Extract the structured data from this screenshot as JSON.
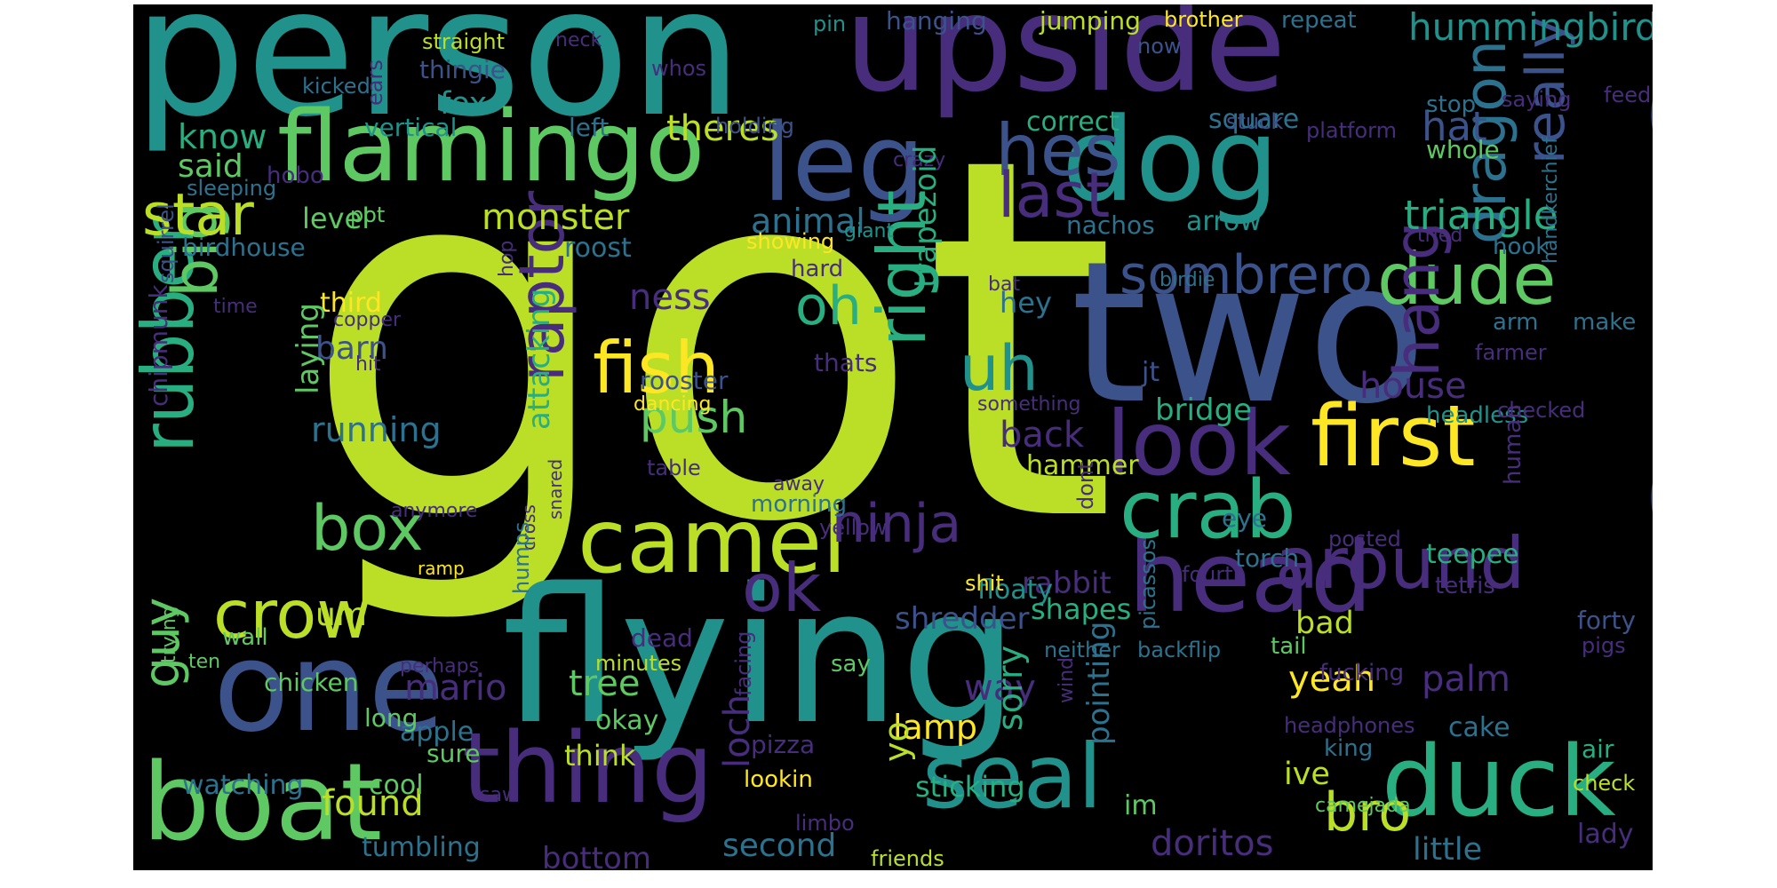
{
  "palette": [
    "#440154",
    "#472d7b",
    "#3b528b",
    "#2c728e",
    "#21918c",
    "#28ae80",
    "#5ec962",
    "#addc30",
    "#fde725",
    "#bbdf27"
  ],
  "words": [
    {
      "text": "got",
      "color": "#bbdf27"
    },
    {
      "text": "person",
      "color": "#21918c"
    },
    {
      "text": "upside",
      "color": "#472d7b"
    },
    {
      "text": "bird",
      "color": "#3b528b"
    },
    {
      "text": "two",
      "color": "#3b528b"
    },
    {
      "text": "flying",
      "color": "#21918c"
    },
    {
      "text": "flamingo",
      "color": "#5ec962"
    },
    {
      "text": "dog",
      "color": "#21918c"
    },
    {
      "text": "leg",
      "color": "#3b528b"
    },
    {
      "text": "hes",
      "color": "#3b528b"
    },
    {
      "text": "one",
      "color": "#3b528b"
    },
    {
      "text": "boat",
      "color": "#5ec962"
    },
    {
      "text": "head",
      "color": "#472d7b"
    },
    {
      "text": "camel",
      "color": "#bbdf27"
    },
    {
      "text": "look",
      "color": "#472d7b"
    },
    {
      "text": "first",
      "color": "#fde725"
    },
    {
      "text": "seal",
      "color": "#21918c"
    },
    {
      "text": "duck",
      "color": "#28ae80"
    },
    {
      "text": "thing",
      "color": "#472d7b"
    },
    {
      "text": "crab",
      "color": "#28ae80"
    },
    {
      "text": "around",
      "color": "#472d7b"
    },
    {
      "text": "dude",
      "color": "#5ec962"
    },
    {
      "text": "right",
      "color": "#28ae80"
    },
    {
      "text": "crow",
      "color": "#bbdf27"
    },
    {
      "text": "fish",
      "color": "#fde725"
    },
    {
      "text": "box",
      "color": "#5ec962"
    },
    {
      "text": "ninja",
      "color": "#472d7b"
    },
    {
      "text": "rubber",
      "color": "#28ae80"
    },
    {
      "text": "big",
      "color": "#5ec962"
    },
    {
      "text": "hang",
      "color": "#472d7b"
    },
    {
      "text": "dragon",
      "color": "#2c728e"
    },
    {
      "text": "raptor",
      "color": "#472d7b"
    },
    {
      "text": "sombrero",
      "color": "#3b528b"
    },
    {
      "text": "uh",
      "color": "#21918c"
    },
    {
      "text": "oh",
      "color": "#28ae80"
    },
    {
      "text": "ok",
      "color": "#472d7b"
    },
    {
      "text": "last",
      "color": "#472d7b"
    },
    {
      "text": "star",
      "color": "#bbdf27"
    },
    {
      "text": "really",
      "color": "#3b528b"
    },
    {
      "text": "triangle",
      "color": "#28ae80"
    },
    {
      "text": "guy",
      "color": "#5ec962"
    },
    {
      "text": "bro",
      "color": "#bbdf27"
    },
    {
      "text": "push",
      "color": "#5ec962"
    },
    {
      "text": "monster",
      "color": "#bbdf27"
    },
    {
      "text": "theres",
      "color": "#bbdf27"
    },
    {
      "text": "hummingbird",
      "color": "#21918c"
    },
    {
      "text": "ness",
      "color": "#472d7b"
    },
    {
      "text": "house",
      "color": "#472d7b"
    },
    {
      "text": "hat",
      "color": "#3b528b"
    },
    {
      "text": "running",
      "color": "#2c728e"
    },
    {
      "text": "found",
      "color": "#bbdf27"
    },
    {
      "text": "yeah",
      "color": "#fde725"
    },
    {
      "text": "palm",
      "color": "#472d7b"
    },
    {
      "text": "doritos",
      "color": "#472d7b"
    },
    {
      "text": "second",
      "color": "#2c728e"
    },
    {
      "text": "bottom",
      "color": "#472d7b"
    },
    {
      "text": "little",
      "color": "#2c728e"
    },
    {
      "text": "mario",
      "color": "#472d7b"
    },
    {
      "text": "tree",
      "color": "#5ec962"
    },
    {
      "text": "lamp",
      "color": "#fde725"
    },
    {
      "text": "okay",
      "color": "#5ec962"
    },
    {
      "text": "um",
      "color": "#bbdf27"
    },
    {
      "text": "way",
      "color": "#472d7b"
    },
    {
      "text": "bad",
      "color": "#bbdf27"
    },
    {
      "text": "ive",
      "color": "#bbdf27"
    },
    {
      "text": "barn",
      "color": "#3b528b"
    },
    {
      "text": "third",
      "color": "#fde725"
    },
    {
      "text": "level",
      "color": "#5ec962"
    },
    {
      "text": "animal",
      "color": "#2c728e"
    },
    {
      "text": "know",
      "color": "#28ae80"
    },
    {
      "text": "said",
      "color": "#5ec962"
    },
    {
      "text": "fox",
      "color": "#21918c"
    },
    {
      "text": "hey",
      "color": "#2c728e"
    },
    {
      "text": "back",
      "color": "#472d7b"
    },
    {
      "text": "bridge",
      "color": "#28ae80"
    },
    {
      "text": "hammer",
      "color": "#bbdf27"
    },
    {
      "text": "shredder",
      "color": "#3b528b"
    },
    {
      "text": "rabbit",
      "color": "#472d7b"
    },
    {
      "text": "shapes",
      "color": "#28ae80"
    },
    {
      "text": "sticking",
      "color": "#28ae80"
    },
    {
      "text": "think",
      "color": "#bbdf27"
    },
    {
      "text": "apple",
      "color": "#2c728e"
    },
    {
      "text": "chicken",
      "color": "#5ec962"
    },
    {
      "text": "cool",
      "color": "#5ec962"
    },
    {
      "text": "watching",
      "color": "#2c728e"
    },
    {
      "text": "tumbling",
      "color": "#2c728e"
    },
    {
      "text": "rooster",
      "color": "#3b528b"
    },
    {
      "text": "arrow",
      "color": "#21918c"
    },
    {
      "text": "square",
      "color": "#2c728e"
    },
    {
      "text": "whole",
      "color": "#5ec962"
    },
    {
      "text": "correct",
      "color": "#28ae80"
    },
    {
      "text": "roost",
      "color": "#2c728e"
    },
    {
      "text": "birdhouse",
      "color": "#2c728e"
    },
    {
      "text": "vertical",
      "color": "#21918c"
    },
    {
      "text": "thingie",
      "color": "#3b528b"
    },
    {
      "text": "straight",
      "color": "#bbdf27"
    },
    {
      "text": "hanging",
      "color": "#3b528b"
    },
    {
      "text": "jumping",
      "color": "#bbdf27"
    },
    {
      "text": "brother",
      "color": "#fde725"
    },
    {
      "text": "repeat",
      "color": "#2c728e"
    },
    {
      "text": "pin",
      "color": "#21918c"
    },
    {
      "text": "neck",
      "color": "#472d7b"
    },
    {
      "text": "whos",
      "color": "#472d7b"
    },
    {
      "text": "kicked",
      "color": "#2c728e"
    },
    {
      "text": "ears",
      "color": "#472d7b"
    },
    {
      "text": "left",
      "color": "#2c728e"
    },
    {
      "text": "holding",
      "color": "#3b528b"
    },
    {
      "text": "now",
      "color": "#3b528b"
    },
    {
      "text": "stop",
      "color": "#2c728e"
    },
    {
      "text": "saying",
      "color": "#472d7b"
    },
    {
      "text": "feed",
      "color": "#472d7b"
    },
    {
      "text": "platform",
      "color": "#472d7b"
    },
    {
      "text": "stuck",
      "color": "#3b528b"
    },
    {
      "text": "hobo",
      "color": "#472d7b"
    },
    {
      "text": "sleeping",
      "color": "#2c728e"
    },
    {
      "text": "pot",
      "color": "#5ec962"
    },
    {
      "text": "crazy",
      "color": "#472d7b"
    },
    {
      "text": "showing",
      "color": "#fde725"
    },
    {
      "text": "giant",
      "color": "#21918c"
    },
    {
      "text": "nachos",
      "color": "#2c728e"
    },
    {
      "text": "birdie",
      "color": "#2c728e"
    },
    {
      "text": "tried",
      "color": "#472d7b"
    },
    {
      "text": "hook",
      "color": "#2c728e"
    },
    {
      "text": "handkerchief",
      "color": "#2c728e"
    },
    {
      "text": "squirrel",
      "color": "#3b528b"
    },
    {
      "text": "time",
      "color": "#472d7b"
    },
    {
      "text": "hop",
      "color": "#472d7b"
    },
    {
      "text": "hard",
      "color": "#472d7b"
    },
    {
      "text": "bat",
      "color": "#472d7b"
    },
    {
      "text": "copper",
      "color": "#472d7b"
    },
    {
      "text": "hit",
      "color": "#472d7b"
    },
    {
      "text": "thats",
      "color": "#472d7b"
    },
    {
      "text": "dancing",
      "color": "#fde725"
    },
    {
      "text": "something",
      "color": "#472d7b"
    },
    {
      "text": "jt",
      "color": "#3b528b"
    },
    {
      "text": "arm",
      "color": "#2c728e"
    },
    {
      "text": "farmer",
      "color": "#472d7b"
    },
    {
      "text": "make",
      "color": "#2c728e"
    },
    {
      "text": "headless",
      "color": "#21918c"
    },
    {
      "text": "checked",
      "color": "#472d7b"
    },
    {
      "text": "chipmunk",
      "color": "#472d7b"
    },
    {
      "text": "laying",
      "color": "#5ec962"
    },
    {
      "text": "attacking",
      "color": "#28ae80"
    },
    {
      "text": "trapezoid",
      "color": "#28ae80"
    },
    {
      "text": "anymore",
      "color": "#472d7b"
    },
    {
      "text": "ramp",
      "color": "#fde725"
    },
    {
      "text": "cross",
      "color": "#472d7b"
    },
    {
      "text": "snared",
      "color": "#472d7b"
    },
    {
      "text": "humps",
      "color": "#2c728e"
    },
    {
      "text": "table",
      "color": "#472d7b"
    },
    {
      "text": "away",
      "color": "#472d7b"
    },
    {
      "text": "morning",
      "color": "#2c728e"
    },
    {
      "text": "yellow",
      "color": "#472d7b"
    },
    {
      "text": "dont",
      "color": "#472d7b"
    },
    {
      "text": "eye",
      "color": "#2c728e"
    },
    {
      "text": "torch",
      "color": "#2c728e"
    },
    {
      "text": "teepee",
      "color": "#28ae80"
    },
    {
      "text": "human",
      "color": "#472d7b"
    },
    {
      "text": "posted",
      "color": "#472d7b"
    },
    {
      "text": "tetris",
      "color": "#472d7b"
    },
    {
      "text": "fourth",
      "color": "#472d7b"
    },
    {
      "text": "floaty",
      "color": "#21918c"
    },
    {
      "text": "shit",
      "color": "#fde725"
    },
    {
      "text": "forty",
      "color": "#3b528b"
    },
    {
      "text": "pigs",
      "color": "#472d7b"
    },
    {
      "text": "tail",
      "color": "#5ec962"
    },
    {
      "text": "backflip",
      "color": "#2c728e"
    },
    {
      "text": "neither",
      "color": "#2c728e"
    },
    {
      "text": "wall",
      "color": "#5ec962"
    },
    {
      "text": "ten",
      "color": "#5ec962"
    },
    {
      "text": "perhaps",
      "color": "#472d7b"
    },
    {
      "text": "trying",
      "color": "#5ec962"
    },
    {
      "text": "dead",
      "color": "#472d7b"
    },
    {
      "text": "minutes",
      "color": "#bbdf27"
    },
    {
      "text": "sorry",
      "color": "#28ae80"
    },
    {
      "text": "say",
      "color": "#5ec962"
    },
    {
      "text": "facing",
      "color": "#472d7b"
    },
    {
      "text": "picassos",
      "color": "#2c728e"
    },
    {
      "text": "fucking",
      "color": "#472d7b"
    },
    {
      "text": "wind",
      "color": "#472d7b"
    },
    {
      "text": "headphones",
      "color": "#472d7b"
    },
    {
      "text": "king",
      "color": "#2c728e"
    },
    {
      "text": "cake",
      "color": "#2c728e"
    },
    {
      "text": "air",
      "color": "#28ae80"
    },
    {
      "text": "pointing",
      "color": "#2c728e"
    },
    {
      "text": "yo",
      "color": "#bbdf27"
    },
    {
      "text": "loch",
      "color": "#472d7b"
    },
    {
      "text": "pizza",
      "color": "#472d7b"
    },
    {
      "text": "lookin",
      "color": "#fde725"
    },
    {
      "text": "limbo",
      "color": "#472d7b"
    },
    {
      "text": "friends",
      "color": "#bbdf27"
    },
    {
      "text": "sure",
      "color": "#5ec962"
    },
    {
      "text": "saw",
      "color": "#472d7b"
    },
    {
      "text": "long",
      "color": "#5ec962"
    },
    {
      "text": "im",
      "color": "#5ec962"
    },
    {
      "text": "camejada",
      "color": "#5ec962"
    },
    {
      "text": "lady",
      "color": "#472d7b"
    },
    {
      "text": "check",
      "color": "#bbdf27"
    }
  ]
}
